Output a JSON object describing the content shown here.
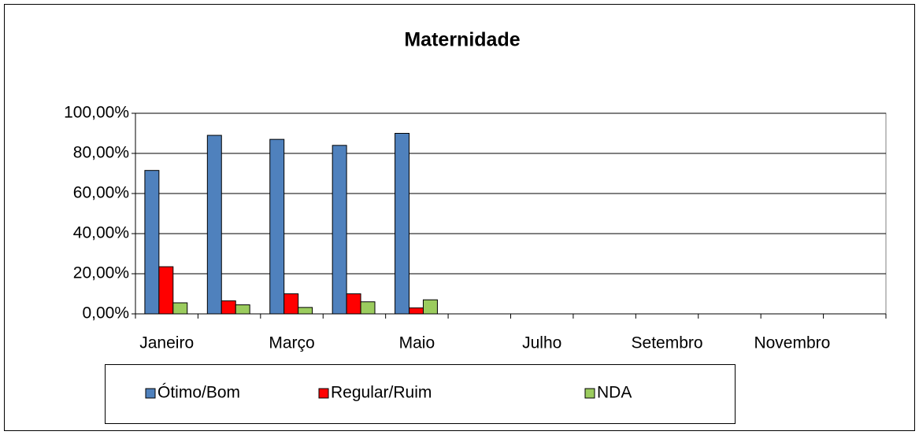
{
  "chart_data": {
    "type": "bar",
    "title": "Maternidade",
    "categories": [
      "Janeiro",
      null,
      "Março",
      null,
      "Maio",
      null,
      "Julho",
      null,
      "Setembro",
      null,
      "Novembro",
      null
    ],
    "series": [
      {
        "name": "Ótimo/Bom",
        "color": "#4f81bd",
        "values": [
          71.5,
          89,
          87,
          84,
          90,
          null,
          null,
          null,
          null,
          null,
          null,
          null
        ]
      },
      {
        "name": "Regular/Ruim",
        "color": "#ff0000",
        "values": [
          23.5,
          6.5,
          10,
          10,
          3,
          null,
          null,
          null,
          null,
          null,
          null,
          null
        ]
      },
      {
        "name": "NDA",
        "color": "#9bcc5e",
        "values": [
          5.5,
          4.5,
          3.2,
          6,
          7,
          null,
          null,
          null,
          null,
          null,
          null,
          null
        ]
      }
    ],
    "ylim": [
      0,
      100
    ],
    "yticks": [
      {
        "value": 0,
        "label": "0,00%"
      },
      {
        "value": 20,
        "label": "20,00%"
      },
      {
        "value": 40,
        "label": "40,00%"
      },
      {
        "value": 60,
        "label": "60,00%"
      },
      {
        "value": 80,
        "label": "80,00%"
      },
      {
        "value": 100,
        "label": "100,00%"
      }
    ],
    "grid": true,
    "legend": "bottom"
  }
}
